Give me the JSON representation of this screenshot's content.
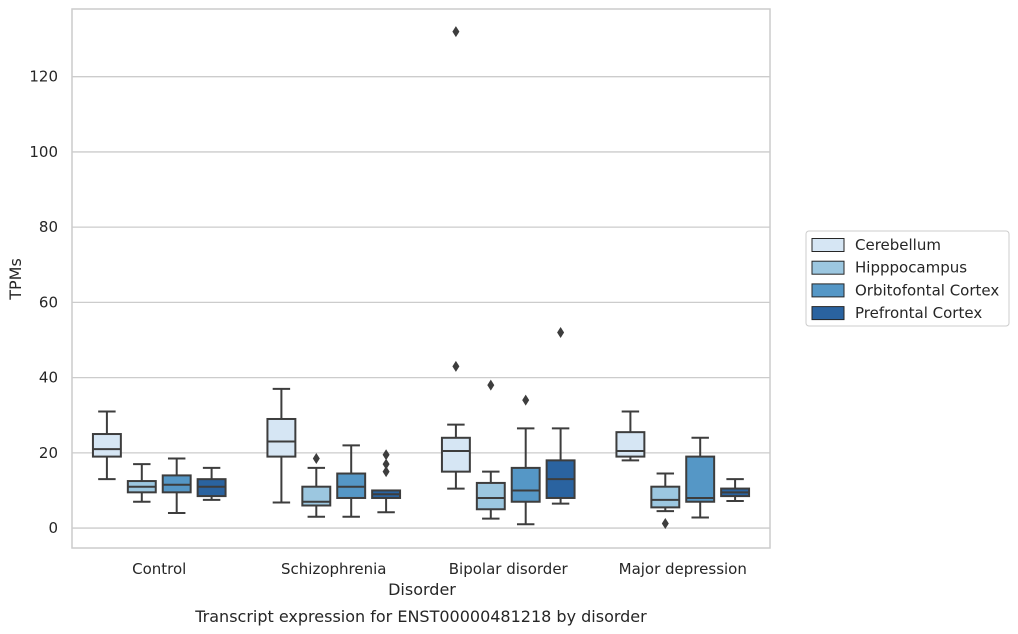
{
  "chart_data": {
    "type": "box",
    "xlabel": "Disorder",
    "ylabel": "TPMs",
    "caption": "Transcript expression for ENST00000481218 by disorder",
    "ylim": [
      -5.3,
      138
    ],
    "yticks": [
      0,
      20,
      40,
      60,
      80,
      100,
      120
    ],
    "grid": "horizontal",
    "legend_position": "right",
    "categories": [
      "Control",
      "Schizophrenia",
      "Bipolar disorder",
      "Major depression"
    ],
    "series": [
      {
        "name": "Cerebellum",
        "color": "#d6e6f4",
        "boxes": [
          {
            "whislo": 13,
            "q1": 19,
            "med": 21,
            "q3": 25,
            "whishi": 31,
            "fliers": []
          },
          {
            "whislo": 6.8,
            "q1": 19,
            "med": 23,
            "q3": 29,
            "whishi": 37,
            "fliers": []
          },
          {
            "whislo": 10.5,
            "q1": 15,
            "med": 20.5,
            "q3": 24,
            "whishi": 27.5,
            "fliers": [
              43,
              132
            ]
          },
          {
            "whislo": 18,
            "q1": 19,
            "med": 20.5,
            "q3": 25.5,
            "whishi": 31,
            "fliers": []
          }
        ]
      },
      {
        "name": "Hipppocampus",
        "color": "#9cc7e0",
        "boxes": [
          {
            "whislo": 7,
            "q1": 9.5,
            "med": 11,
            "q3": 12.5,
            "whishi": 17,
            "fliers": []
          },
          {
            "whislo": 3,
            "q1": 6,
            "med": 7,
            "q3": 11,
            "whishi": 16,
            "fliers": [
              18.5
            ]
          },
          {
            "whislo": 2.5,
            "q1": 5,
            "med": 8,
            "q3": 12,
            "whishi": 15,
            "fliers": [
              38
            ]
          },
          {
            "whislo": 4.5,
            "q1": 5.5,
            "med": 7.5,
            "q3": 11,
            "whishi": 14.5,
            "fliers": [
              1.2
            ]
          }
        ]
      },
      {
        "name": "Orbitofontal Cortex",
        "color": "#5597c6",
        "boxes": [
          {
            "whislo": 4,
            "q1": 9.5,
            "med": 11.5,
            "q3": 14,
            "whishi": 18.5,
            "fliers": []
          },
          {
            "whislo": 3,
            "q1": 8,
            "med": 11,
            "q3": 14.5,
            "whishi": 22,
            "fliers": []
          },
          {
            "whislo": 1,
            "q1": 7,
            "med": 10,
            "q3": 16,
            "whishi": 26.5,
            "fliers": [
              34
            ]
          },
          {
            "whislo": 2.8,
            "q1": 7,
            "med": 8,
            "q3": 19,
            "whishi": 24,
            "fliers": []
          }
        ]
      },
      {
        "name": "Prefrontal Cortex",
        "color": "#2a63a0",
        "boxes": [
          {
            "whislo": 7.5,
            "q1": 8.5,
            "med": 11,
            "q3": 13,
            "whishi": 16,
            "fliers": []
          },
          {
            "whislo": 4.2,
            "q1": 8,
            "med": 9,
            "q3": 10,
            "whishi": 10,
            "fliers": [
              15,
              17,
              19.5
            ]
          },
          {
            "whislo": 6.5,
            "q1": 8,
            "med": 13,
            "q3": 18,
            "whishi": 26.5,
            "fliers": [
              52
            ]
          },
          {
            "whislo": 7.2,
            "q1": 8.5,
            "med": 9.5,
            "q3": 10.5,
            "whishi": 13,
            "fliers": []
          }
        ]
      }
    ]
  }
}
